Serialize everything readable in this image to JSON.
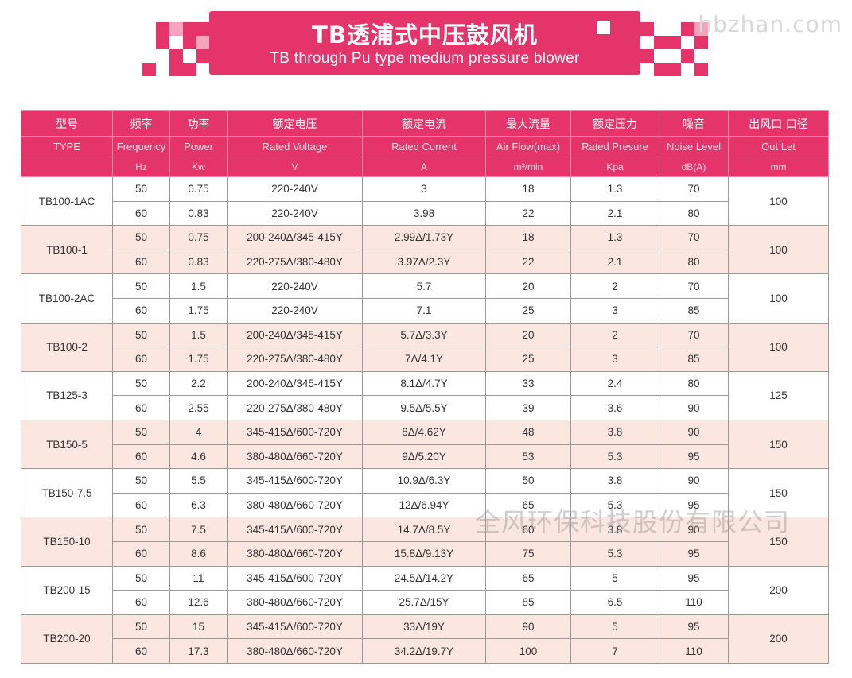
{
  "title": {
    "cn": "TB透浦式中压鼓风机",
    "en": "TB through Pu type medium pressure blower"
  },
  "watermark": "hbzhan.com",
  "watermark_company": "全风环保科技股份有限公司",
  "colors": {
    "accent": "#e4346a",
    "row_pink": "#fce6e0",
    "row_white": "#ffffff"
  },
  "headers": [
    {
      "cn": "型号",
      "en": "TYPE",
      "unit": ""
    },
    {
      "cn": "频率",
      "en": "Frequency",
      "unit": "Hz"
    },
    {
      "cn": "功率",
      "en": "Power",
      "unit": "Kw"
    },
    {
      "cn": "额定电压",
      "en": "Rated Voltage",
      "unit": "V"
    },
    {
      "cn": "额定电流",
      "en": "Rated Current",
      "unit": "A"
    },
    {
      "cn": "最大流量",
      "en": "Air Flow(max)",
      "unit": "m³/min"
    },
    {
      "cn": "额定压力",
      "en": "Rated Presure",
      "unit": "Kpa"
    },
    {
      "cn": "噪音",
      "en": "Noise Level",
      "unit": "dB(A)"
    },
    {
      "cn": "出风口 口径",
      "en": "Out Let",
      "unit": "mm"
    }
  ],
  "models": [
    {
      "model": "TB100-1AC",
      "outlet": "100",
      "rows": [
        {
          "freq": "50",
          "power": "0.75",
          "voltage": "220-240V",
          "current": "3",
          "flow": "18",
          "pressure": "1.3",
          "noise": "70"
        },
        {
          "freq": "60",
          "power": "0.83",
          "voltage": "220-240V",
          "current": "3.98",
          "flow": "22",
          "pressure": "2.1",
          "noise": "80"
        }
      ]
    },
    {
      "model": "TB100-1",
      "outlet": "100",
      "rows": [
        {
          "freq": "50",
          "power": "0.75",
          "voltage": "200-240Δ/345-415Y",
          "current": "2.99Δ/1.73Y",
          "flow": "18",
          "pressure": "1.3",
          "noise": "70"
        },
        {
          "freq": "60",
          "power": "0.83",
          "voltage": "220-275Δ/380-480Y",
          "current": "3.97Δ/2.3Y",
          "flow": "22",
          "pressure": "2.1",
          "noise": "80"
        }
      ]
    },
    {
      "model": "TB100-2AC",
      "outlet": "100",
      "rows": [
        {
          "freq": "50",
          "power": "1.5",
          "voltage": "220-240V",
          "current": "5.7",
          "flow": "20",
          "pressure": "2",
          "noise": "70"
        },
        {
          "freq": "60",
          "power": "1.75",
          "voltage": "220-240V",
          "current": "7.1",
          "flow": "25",
          "pressure": "3",
          "noise": "85"
        }
      ]
    },
    {
      "model": "TB100-2",
      "outlet": "100",
      "rows": [
        {
          "freq": "50",
          "power": "1.5",
          "voltage": "200-240Δ/345-415Y",
          "current": "5.7Δ/3.3Y",
          "flow": "20",
          "pressure": "2",
          "noise": "70"
        },
        {
          "freq": "60",
          "power": "1.75",
          "voltage": "220-275Δ/380-480Y",
          "current": "7Δ/4.1Y",
          "flow": "25",
          "pressure": "3",
          "noise": "85"
        }
      ]
    },
    {
      "model": "TB125-3",
      "outlet": "125",
      "rows": [
        {
          "freq": "50",
          "power": "2.2",
          "voltage": "200-240Δ/345-415Y",
          "current": "8.1Δ/4.7Y",
          "flow": "33",
          "pressure": "2.4",
          "noise": "80"
        },
        {
          "freq": "60",
          "power": "2.55",
          "voltage": "220-275Δ/380-480Y",
          "current": "9.5Δ/5.5Y",
          "flow": "39",
          "pressure": "3.6",
          "noise": "90"
        }
      ]
    },
    {
      "model": "TB150-5",
      "outlet": "150",
      "rows": [
        {
          "freq": "50",
          "power": "4",
          "voltage": "345-415Δ/600-720Y",
          "current": "8Δ/4.62Y",
          "flow": "48",
          "pressure": "3.8",
          "noise": "90"
        },
        {
          "freq": "60",
          "power": "4.6",
          "voltage": "380-480Δ/660-720Y",
          "current": "9Δ/5.20Y",
          "flow": "53",
          "pressure": "5.3",
          "noise": "95"
        }
      ]
    },
    {
      "model": "TB150-7.5",
      "outlet": "150",
      "rows": [
        {
          "freq": "50",
          "power": "5.5",
          "voltage": "345-415Δ/600-720Y",
          "current": "10.9Δ/6.3Y",
          "flow": "50",
          "pressure": "3.8",
          "noise": "90"
        },
        {
          "freq": "60",
          "power": "6.3",
          "voltage": "380-480Δ/660-720Y",
          "current": "12Δ/6.94Y",
          "flow": "65",
          "pressure": "5.3",
          "noise": "95"
        }
      ]
    },
    {
      "model": "TB150-10",
      "outlet": "150",
      "rows": [
        {
          "freq": "50",
          "power": "7.5",
          "voltage": "345-415Δ/600-720Y",
          "current": "14.7Δ/8.5Y",
          "flow": "60",
          "pressure": "3.8",
          "noise": "90"
        },
        {
          "freq": "60",
          "power": "8.6",
          "voltage": "380-480Δ/660-720Y",
          "current": "15.8Δ/9.13Y",
          "flow": "75",
          "pressure": "5.3",
          "noise": "95"
        }
      ]
    },
    {
      "model": "TB200-15",
      "outlet": "200",
      "rows": [
        {
          "freq": "50",
          "power": "11",
          "voltage": "345-415Δ/600-720Y",
          "current": "24.5Δ/14.2Y",
          "flow": "65",
          "pressure": "5",
          "noise": "95"
        },
        {
          "freq": "60",
          "power": "12.6",
          "voltage": "380-480Δ/660-720Y",
          "current": "25.7Δ/15Y",
          "flow": "85",
          "pressure": "6.5",
          "noise": "110"
        }
      ]
    },
    {
      "model": "TB200-20",
      "outlet": "200",
      "rows": [
        {
          "freq": "50",
          "power": "15",
          "voltage": "345-415Δ/600-720Y",
          "current": "33Δ/19Y",
          "flow": "90",
          "pressure": "5",
          "noise": "95"
        },
        {
          "freq": "60",
          "power": "17.3",
          "voltage": "380-480Δ/660-720Y",
          "current": "34.2Δ/19.7Y",
          "flow": "100",
          "pressure": "7",
          "noise": "110"
        }
      ]
    }
  ]
}
